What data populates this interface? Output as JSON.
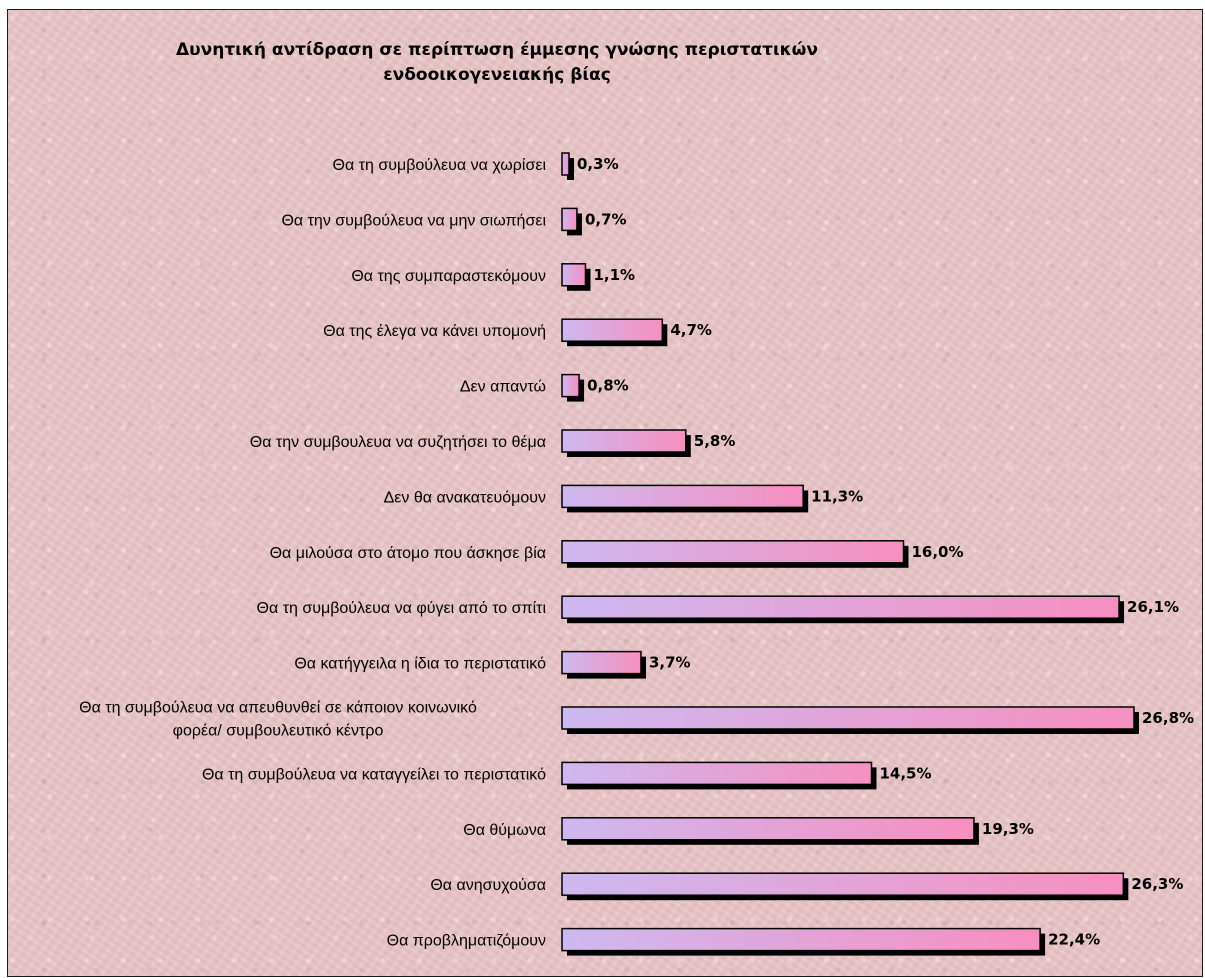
{
  "chart_data": {
    "type": "bar",
    "orientation": "horizontal",
    "title": [
      "Δυνητική αντίδραση σε περίπτωση έμμεσης γνώσης περιστατικών",
      "ενδοοικογενειακής βίας"
    ],
    "categories": [
      [
        "Θα τη συμβούλευα να χωρίσει"
      ],
      [
        "Θα την συμβούλευα να μην σιωπήσει"
      ],
      [
        "Θα της συμπαραστεκόμουν"
      ],
      [
        "Θα της έλεγα να κάνει υπομονή"
      ],
      [
        "Δεν απαντώ"
      ],
      [
        "Θα την συμβουλευα να συζητήσει το θέμα"
      ],
      [
        "Δεν θα ανακατευόμουν"
      ],
      [
        "Θα μιλούσα στο άτομο που άσκησε βία"
      ],
      [
        "Θα τη συμβούλευα να φύγει από το σπίτι"
      ],
      [
        "Θα κατήγγειλα η ίδια το περιστατικό"
      ],
      [
        "Θα τη συμβούλευα να απευθυνθεί σε κάποιον κοινωνικό",
        "φορέα/ συμβουλευτικό κέντρο"
      ],
      [
        "Θα τη συμβούλευα να καταγγείλει το περιστατικό"
      ],
      [
        "Θα θύμωνα"
      ],
      [
        "Θα ανησυχούσα"
      ],
      [
        "Θα προβληματιζόμουν"
      ]
    ],
    "values": [
      0.3,
      0.7,
      1.1,
      4.7,
      0.8,
      5.8,
      11.3,
      16.0,
      26.1,
      3.7,
      26.8,
      14.5,
      19.3,
      26.3,
      22.4
    ],
    "value_labels": [
      "0,3%",
      "0,7%",
      "1,1%",
      "4,7%",
      "0,8%",
      "5,8%",
      "11,3%",
      "16,0%",
      "26,1%",
      "3,7%",
      "26,8%",
      "14,5%",
      "19,3%",
      "26,3%",
      "22,4%"
    ],
    "xlim": [
      0,
      26.8
    ],
    "grid": false,
    "legend": "none",
    "colors": {
      "bar_left": "#cdb9f0",
      "bar_right": "#f78fbf",
      "bar_border": "#000000",
      "shadow": "#000000",
      "background": "#e7c4c7"
    }
  }
}
